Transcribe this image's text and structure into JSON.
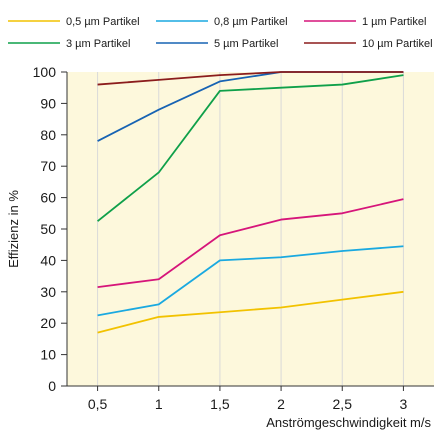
{
  "chart_data": {
    "type": "line",
    "xlabel": "Anströmgeschwindigkeit m/s",
    "ylabel": "Effizienz in %",
    "x": [
      0.5,
      1,
      1.5,
      2,
      2.5,
      3
    ],
    "x_tick_labels": [
      "0,5",
      "1",
      "1,5",
      "2",
      "2,5",
      "3"
    ],
    "y_ticks": [
      0,
      10,
      20,
      30,
      40,
      50,
      60,
      70,
      80,
      90,
      100
    ],
    "xlim": [
      0.25,
      3.25
    ],
    "ylim": [
      0,
      100
    ],
    "grid": "vertical",
    "legend_position": "top",
    "background_color": "#fdf8dc",
    "series": [
      {
        "name": "0,5 µm Partikel",
        "color": "#f2c200",
        "values": [
          17,
          22,
          23.5,
          25,
          27.5,
          30
        ]
      },
      {
        "name": "0,8 µm Partikel",
        "color": "#1aa9e0",
        "values": [
          22.5,
          26,
          40,
          41,
          43,
          44.5
        ]
      },
      {
        "name": "1 µm Partikel",
        "color": "#d6157a",
        "values": [
          31.5,
          34,
          48,
          53,
          55,
          59.5
        ]
      },
      {
        "name": "3 µm Partikel",
        "color": "#0fa04a",
        "values": [
          52.5,
          68,
          94,
          95,
          96,
          99
        ]
      },
      {
        "name": "5 µm Partikel",
        "color": "#1763b3",
        "values": [
          78,
          88,
          97,
          100,
          100,
          100
        ]
      },
      {
        "name": "10 µm Partikel",
        "color": "#8b1c1c",
        "values": [
          96,
          97.5,
          99,
          100,
          100,
          100
        ]
      }
    ]
  }
}
